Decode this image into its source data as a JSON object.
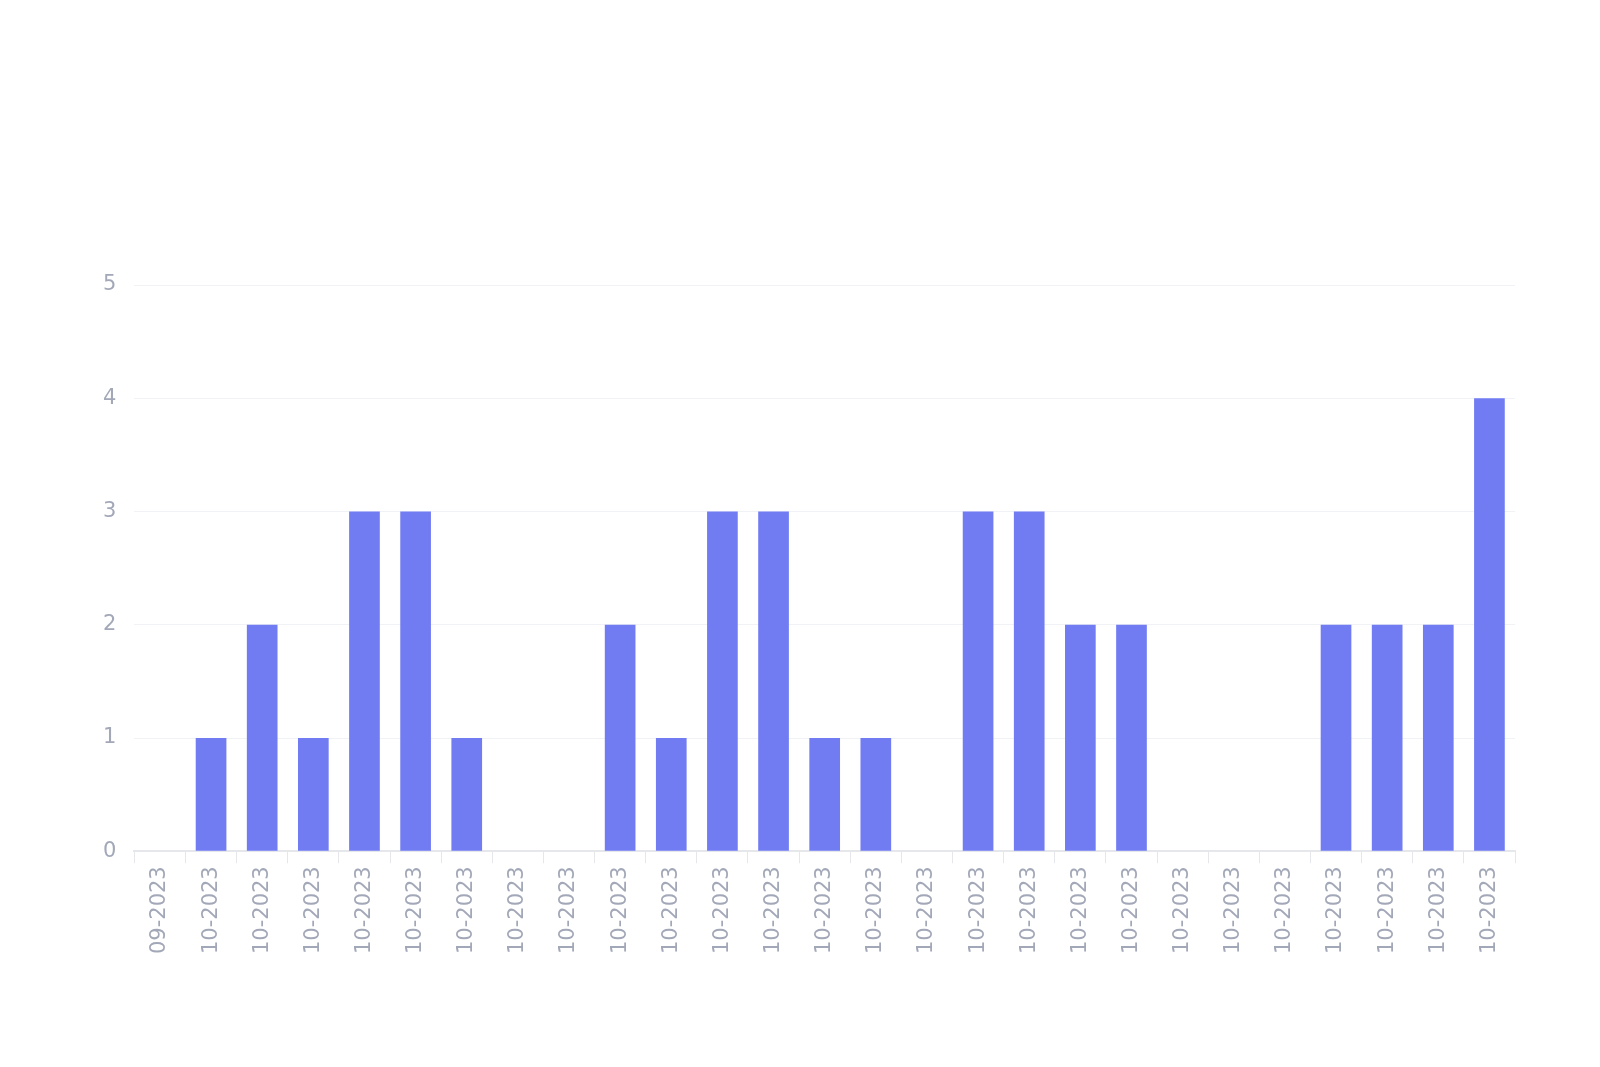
{
  "chart_data": {
    "type": "bar",
    "categories": [
      "09-2023",
      "10-2023",
      "10-2023",
      "10-2023",
      "10-2023",
      "10-2023",
      "10-2023",
      "10-2023",
      "10-2023",
      "10-2023",
      "10-2023",
      "10-2023",
      "10-2023",
      "10-2023",
      "10-2023",
      "10-2023",
      "10-2023",
      "10-2023",
      "10-2023",
      "10-2023",
      "10-2023",
      "10-2023",
      "10-2023",
      "10-2023",
      "10-2023",
      "10-2023",
      "10-2023"
    ],
    "values": [
      0,
      1,
      2,
      1,
      3,
      3,
      1,
      0,
      0,
      2,
      1,
      3,
      3,
      1,
      1,
      0,
      3,
      3,
      2,
      2,
      0,
      0,
      0,
      2,
      2,
      2,
      4
    ],
    "color": "#717cf3",
    "ylim": [
      0,
      5
    ],
    "yticks": [
      0,
      1,
      2,
      3,
      4,
      5
    ],
    "grid": "y"
  }
}
